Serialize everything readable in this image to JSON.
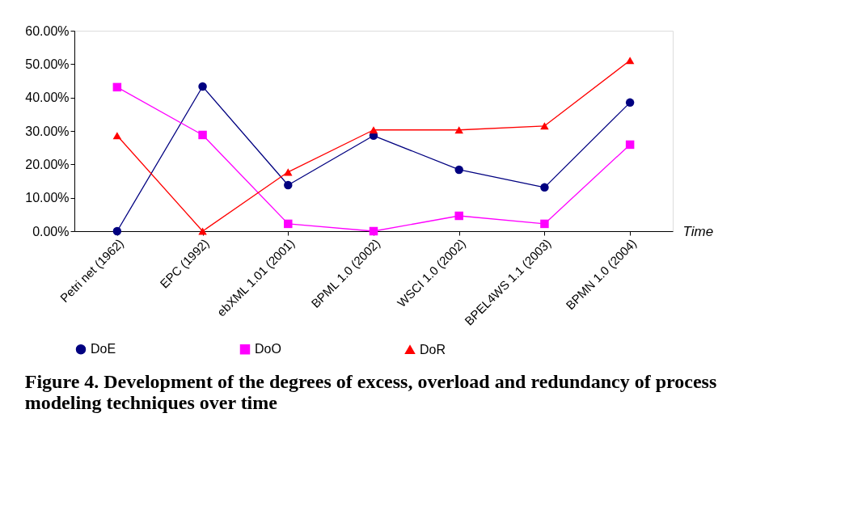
{
  "chart_data": {
    "type": "line",
    "title": "Figure 4. Development of the degrees of excess, overload and redundancy of process modeling techniques over time",
    "xlabel": "Time",
    "categories": [
      "Petri net (1962)",
      "EPC (1992)",
      "ebXML 1.01 (2001)",
      "BPML 1.0 (2002)",
      "WSCI 1.0 (2002)",
      "BPEL4WS 1.1 (2003)",
      "BPMN 1.0 (2004)"
    ],
    "series": [
      {
        "name": "DoE",
        "color": "#000080",
        "marker": "circle",
        "values": [
          0,
          43.3,
          13.8,
          28.6,
          18.4,
          13.1,
          38.5
        ]
      },
      {
        "name": "DoO",
        "color": "#ff00ff",
        "marker": "square",
        "values": [
          43.1,
          28.8,
          2.2,
          0,
          4.6,
          2.2,
          25.9
        ]
      },
      {
        "name": "DoR",
        "color": "#ff0000",
        "marker": "triangle",
        "values": [
          28.6,
          0,
          17.7,
          30.3,
          30.3,
          31.5,
          51.1
        ]
      }
    ],
    "ylim": [
      0,
      60
    ],
    "yticks": [
      {
        "value": 0,
        "label": "0.00%"
      },
      {
        "value": 10,
        "label": "10.00%"
      },
      {
        "value": 20,
        "label": "20.00%"
      },
      {
        "value": 30,
        "label": "30.00%"
      },
      {
        "value": 40,
        "label": "40.00%"
      },
      {
        "value": 50,
        "label": "50.00%"
      },
      {
        "value": 60,
        "label": "60.00%"
      }
    ],
    "grid": false,
    "legend": "bottom",
    "line_style": "solid"
  }
}
